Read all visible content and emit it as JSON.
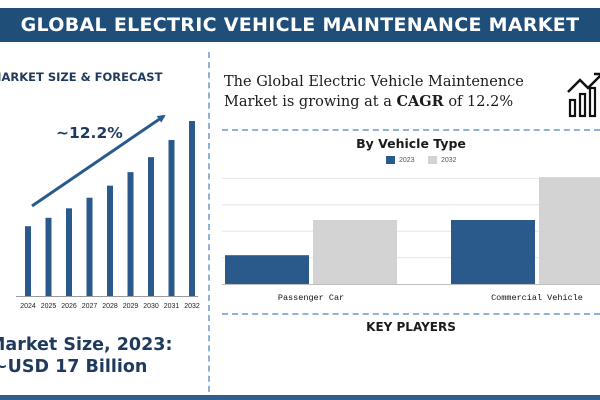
{
  "header": {
    "title": "GLOBAL ELECTRIC VEHICLE MAINTENANCE MARKET"
  },
  "left_panel": {
    "heading": "MARKET SIZE & FORECAST",
    "cagr_label": "~12.2%",
    "market_size_line1": "Market Size, 2023:",
    "market_size_line2": "~USD 17 Billion"
  },
  "statement": {
    "prefix": "The Global Electric Vehicle Maintenence Market is growing at a ",
    "highlight": "CAGR",
    "suffix": " of 12.2%"
  },
  "icons": {
    "growth": "growth-chart-icon"
  },
  "right_panel": {
    "key_players": "KEY PLAYERS"
  },
  "colors": {
    "primary": "#1f4e79",
    "bar": "#2a5a8c",
    "series_2032": "#d3d3d3",
    "separator": "#8fb2d6",
    "arrow": "#2a5a8c"
  },
  "chart_data": [
    {
      "type": "bar",
      "title": "",
      "xlabel": "",
      "ylabel": "",
      "categories": [
        "2024",
        "2025",
        "2026",
        "2027",
        "2028",
        "2029",
        "2030",
        "2031",
        "2032"
      ],
      "values": [
        19.1,
        21.4,
        24.0,
        26.9,
        30.2,
        33.9,
        38.0,
        42.7,
        47.9
      ],
      "ylim": [
        0,
        52
      ],
      "grid": false,
      "annotation": "~12.2%"
    },
    {
      "type": "bar",
      "title": "By Vehicle Type",
      "xlabel": "",
      "ylabel": "",
      "categories": [
        "Passenger Car",
        "Commercial Vehicle"
      ],
      "series": [
        {
          "name": "2023",
          "values": [
            4.5,
            10.0
          ]
        },
        {
          "name": "2032",
          "values": [
            10.0,
            16.7
          ]
        }
      ],
      "ylim": [
        0,
        17.5
      ],
      "grid": true,
      "legend": "top-center"
    }
  ]
}
